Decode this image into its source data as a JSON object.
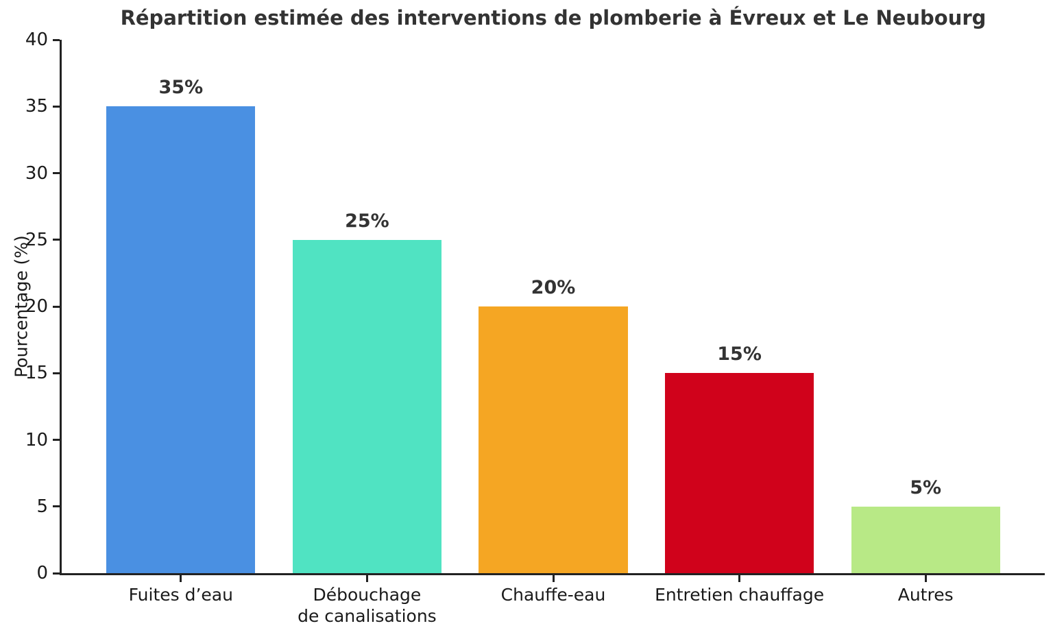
{
  "chart_data": {
    "type": "bar",
    "title": "Répartition estimée des interventions de plomberie à Évreux et Le Neubourg",
    "categories": [
      "Fuites d’eau",
      "Débouchage\nde canalisations",
      "Chauffe-eau",
      "Entretien chauffage",
      "Autres"
    ],
    "values": [
      35,
      25,
      20,
      15,
      5
    ],
    "value_labels": [
      "35%",
      "25%",
      "20%",
      "15%",
      "5%"
    ],
    "bar_colors": [
      "#4A90E2",
      "#50E3C2",
      "#F5A623",
      "#D0021B",
      "#B8E986"
    ],
    "xlabel": "",
    "ylabel": "Pourcentage (%)",
    "ylim": [
      0,
      40
    ],
    "yticks": [
      0,
      5,
      10,
      15,
      20,
      25,
      30,
      35,
      40
    ],
    "grid": false,
    "legend": null
  },
  "colors": {
    "background": "#ffffff",
    "axis": "#222222",
    "tick_label": "#1a1a1a",
    "title_text": "#333333",
    "value_label_text": "#333333"
  }
}
